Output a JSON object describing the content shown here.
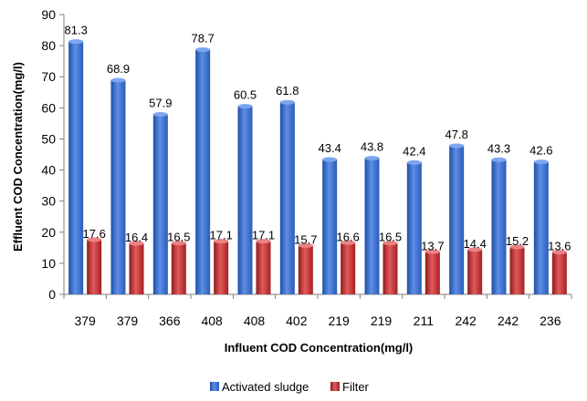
{
  "chart_data": {
    "type": "bar",
    "title": "",
    "xlabel": "Influent COD Concentration(mg/l)",
    "ylabel": "Effluent COD Concentration(mg/l)",
    "ylim": [
      0,
      90
    ],
    "yticks": [
      0,
      10,
      20,
      30,
      40,
      50,
      60,
      70,
      80,
      90
    ],
    "grid": false,
    "legend_position": "bottom",
    "categories": [
      "379",
      "379",
      "366",
      "408",
      "408",
      "402",
      "219",
      "219",
      "211",
      "242",
      "242",
      "236"
    ],
    "series": [
      {
        "name": "Activated sludge",
        "color": "#3a6fcf",
        "values": [
          81.3,
          68.9,
          57.9,
          78.7,
          60.5,
          61.8,
          43.4,
          43.8,
          42.4,
          47.8,
          43.3,
          42.6
        ],
        "labels": [
          "81.3",
          "68.9",
          "57.9",
          "78.7",
          "60.5",
          "61.8",
          "43.4",
          "43.8",
          "42.4",
          "47.8",
          "43.3",
          "42.6"
        ]
      },
      {
        "name": "Filter",
        "color": "#c0292b",
        "values": [
          17.6,
          16.4,
          16.5,
          17.1,
          17.1,
          15.7,
          16.6,
          16.5,
          13.7,
          14.4,
          15.2,
          13.6
        ],
        "labels": [
          "17.6",
          "16.4",
          "16.5",
          "17.1",
          "17.1",
          "15.7",
          "16.6",
          "16.5",
          "13.7",
          "14.4",
          "15.2",
          "13.6"
        ]
      }
    ]
  }
}
